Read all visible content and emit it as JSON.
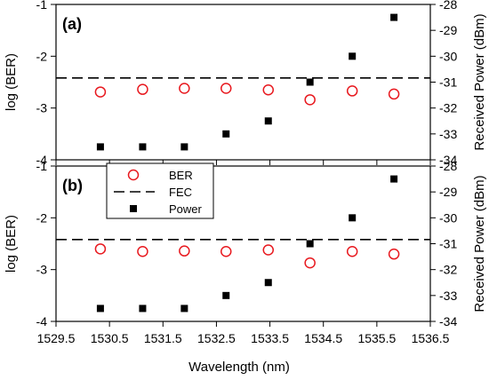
{
  "chart_data": [
    {
      "type": "scatter",
      "panel_label": "(a)",
      "x": [
        1530.33,
        1531.12,
        1531.9,
        1532.68,
        1533.47,
        1534.25,
        1535.04,
        1535.82
      ],
      "xlim": [
        1529.5,
        1536.5
      ],
      "xticks": [
        "1529.5",
        "1530.5",
        "1531.5",
        "1532.5",
        "1533.5",
        "1534.5",
        "1535.5",
        "1536.5"
      ],
      "xlabel": "Wavelength (nm)",
      "ylabel": "log (BER)",
      "ylim": [
        -4,
        -1
      ],
      "yticks": [
        "-4",
        "-3",
        "-2",
        "-1"
      ],
      "y2label": "Received Power (dBm)",
      "y2lim": [
        -34,
        -28
      ],
      "y2ticks": [
        "-34",
        "-33",
        "-32",
        "-31",
        "-30",
        "-29",
        "-28"
      ],
      "series": [
        {
          "name": "BER",
          "axis": "left",
          "marker": "open-circle",
          "color": "#e8191f",
          "values": [
            -2.69,
            -2.64,
            -2.62,
            -2.62,
            -2.65,
            -2.84,
            -2.67,
            -2.73
          ]
        },
        {
          "name": "Power",
          "axis": "right",
          "marker": "filled-square",
          "color": "#000000",
          "values": [
            -33.5,
            -33.5,
            -33.5,
            -33.0,
            -32.5,
            -31.0,
            -30.0,
            -28.5
          ]
        }
      ],
      "reference_line": {
        "name": "FEC",
        "axis": "left",
        "value": -2.42,
        "style": "dashed",
        "color": "#000000"
      }
    },
    {
      "type": "scatter",
      "panel_label": "(b)",
      "x": [
        1530.33,
        1531.12,
        1531.9,
        1532.68,
        1533.47,
        1534.25,
        1535.04,
        1535.82
      ],
      "xlim": [
        1529.5,
        1536.5
      ],
      "xticks": [
        "1529.5",
        "1530.5",
        "1531.5",
        "1532.5",
        "1533.5",
        "1534.5",
        "1535.5",
        "1536.5"
      ],
      "xlabel": "Wavelength (nm)",
      "ylabel": "log (BER)",
      "ylim": [
        -4,
        -1
      ],
      "yticks": [
        "-4",
        "-3",
        "-2",
        "-1"
      ],
      "y2label": "Received Power (dBm)",
      "y2lim": [
        -34,
        -28
      ],
      "y2ticks": [
        "-34",
        "-33",
        "-32",
        "-31",
        "-30",
        "-29",
        "-28"
      ],
      "series": [
        {
          "name": "BER",
          "axis": "left",
          "marker": "open-circle",
          "color": "#e8191f",
          "values": [
            -2.6,
            -2.65,
            -2.64,
            -2.65,
            -2.62,
            -2.87,
            -2.65,
            -2.7
          ]
        },
        {
          "name": "Power",
          "axis": "right",
          "marker": "filled-square",
          "color": "#000000",
          "values": [
            -33.5,
            -33.5,
            -33.5,
            -33.0,
            -32.5,
            -31.0,
            -30.0,
            -28.5
          ]
        }
      ],
      "reference_line": {
        "name": "FEC",
        "axis": "left",
        "value": -2.42,
        "style": "dashed",
        "color": "#000000"
      }
    }
  ],
  "legend": {
    "placement": "bottom-left of panel (a)",
    "entries": [
      {
        "label": "BER",
        "marker": "open-circle",
        "color": "#e8191f"
      },
      {
        "label": "FEC",
        "marker": "dashed-line",
        "color": "#000000"
      },
      {
        "label": "Power",
        "marker": "filled-square",
        "color": "#000000"
      }
    ]
  }
}
